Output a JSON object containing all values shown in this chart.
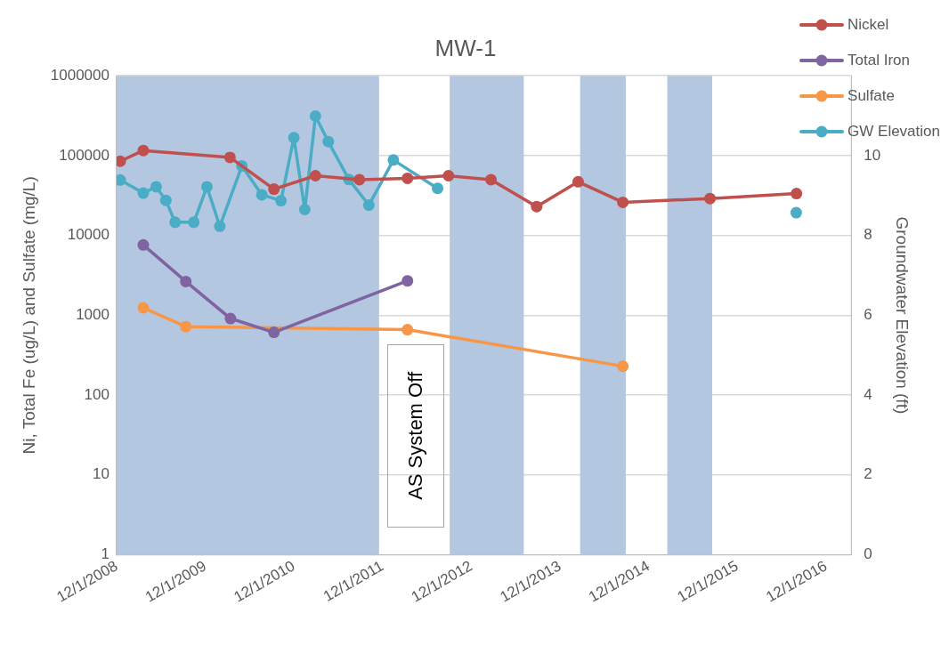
{
  "chart_data": {
    "type": "line",
    "title": "MW-1",
    "ylabel": "Ni, Total Fe (ug/L) and Sulfate (mg/L)",
    "y2label": "Groundwater Elevation (ft)",
    "xlim": [
      "2008-12-01",
      "2017-03-15"
    ],
    "xticks": [
      {
        "value": "2008-12-01",
        "label": "12/1/2008"
      },
      {
        "value": "2009-12-01",
        "label": "12/1/2009"
      },
      {
        "value": "2010-12-01",
        "label": "12/1/2010"
      },
      {
        "value": "2011-12-01",
        "label": "12/1/2011"
      },
      {
        "value": "2012-12-01",
        "label": "12/1/2012"
      },
      {
        "value": "2013-12-01",
        "label": "12/1/2013"
      },
      {
        "value": "2014-12-01",
        "label": "12/1/2014"
      },
      {
        "value": "2015-12-01",
        "label": "12/1/2015"
      },
      {
        "value": "2016-12-01",
        "label": "12/1/2016"
      }
    ],
    "ylim": [
      1,
      1000000
    ],
    "yticks": [
      1,
      10,
      100,
      1000,
      10000,
      100000,
      1000000
    ],
    "log": "y",
    "y2lim": [
      0,
      12
    ],
    "y2ticks": [
      0,
      2,
      4,
      6,
      8,
      10
    ],
    "grid": "y",
    "legend": "top right",
    "marker": "circle",
    "line_style": "solid",
    "series": [
      {
        "name": "Nickel",
        "color": "#c0504d",
        "x": [
          "2008-12-16",
          "2009-03-21",
          "2010-03-13",
          "2010-09-10",
          "2011-02-28",
          "2011-08-28",
          "2012-03-13",
          "2012-08-29",
          "2013-02-20",
          "2013-08-27",
          "2014-02-14",
          "2014-08-17",
          "2015-08-11",
          "2016-08-01"
        ],
        "values": [
          85000,
          116000,
          95000,
          38000,
          56000,
          50000,
          52000,
          56000,
          50000,
          23000,
          47000,
          26000,
          29000,
          33500
        ]
      },
      {
        "name": "Total Iron",
        "color": "#8064a2",
        "x": [
          "2009-03-21",
          "2009-09-12",
          "2010-03-15",
          "2010-09-10",
          "2012-03-13"
        ],
        "values": [
          7600,
          2650,
          910,
          610,
          2700
        ]
      },
      {
        "name": "Sulfate",
        "color": "#f79646",
        "x": [
          "2009-03-21",
          "2009-09-12",
          "2012-03-13",
          "2014-08-17"
        ],
        "values": [
          1240,
          720,
          660,
          230
        ]
      },
      {
        "name": "GW Elevation",
        "color": "#4bacc6",
        "axis": "y2",
        "x": [
          "2008-12-16",
          "2009-03-21",
          "2009-05-13",
          "2009-06-22",
          "2009-07-30",
          "2009-10-15",
          "2009-12-08",
          "2010-01-30",
          "2010-05-01",
          "2010-07-22",
          "2010-10-09",
          "2010-12-01",
          "2011-01-15",
          "2011-02-28",
          "2011-04-22",
          "2011-07-16",
          "2011-10-06",
          "2012-01-15",
          "2012-07-15",
          "2014-04-01",
          "2016-07-31"
        ],
        "values": [
          9.39,
          9.06,
          9.22,
          8.88,
          8.33,
          8.33,
          9.22,
          8.23,
          9.74,
          9.02,
          8.87,
          10.45,
          8.65,
          10.99,
          10.35,
          9.4,
          8.76,
          9.89,
          9.18,
          null,
          8.57
        ]
      }
    ],
    "bands": [
      {
        "axis": "x",
        "from": "2008-12-01",
        "to": "2011-11-17",
        "color": "#b4c7e0"
      },
      {
        "axis": "x",
        "from": "2012-09-03",
        "to": "2013-07-05",
        "color": "#b4c7e0"
      },
      {
        "axis": "x",
        "from": "2014-02-22",
        "to": "2014-08-29",
        "color": "#b4c7e0"
      },
      {
        "axis": "x",
        "from": "2015-02-16",
        "to": "2015-08-20",
        "color": "#b4c7e0"
      }
    ],
    "annotations": [
      "AS System Off"
    ]
  }
}
